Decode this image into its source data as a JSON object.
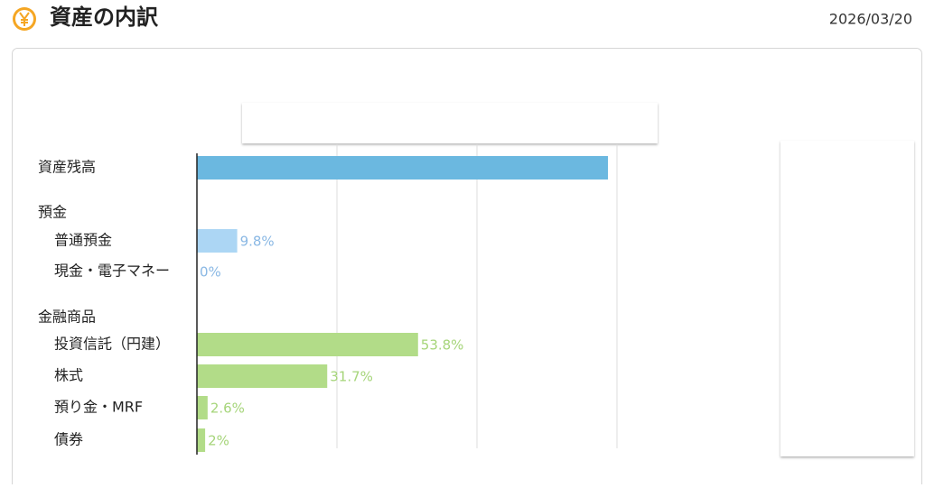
{
  "header": {
    "title": "資産の内訳",
    "date": "2026/03/20"
  },
  "chart_data": {
    "type": "bar",
    "categories": [
      "資産残高",
      "預金",
      "普通預金",
      "現金・電子マネー",
      "金融商品",
      "投資信託（円建）",
      "株式",
      "預り金・MRF",
      "債券"
    ],
    "values": [
      100,
      null,
      9.8,
      0,
      null,
      53.8,
      31.7,
      2.6,
      2
    ],
    "value_labels": [
      null,
      null,
      "9.8%",
      "0%",
      null,
      "53.8%",
      "31.7%",
      "2.6%",
      "2%"
    ],
    "colors": [
      "#6bb8e0",
      null,
      "#acd6f4",
      "#acd6f4",
      null,
      "#b2dc88",
      "#b2dc88",
      "#b2dc88",
      "#b2dc88"
    ],
    "label_colors": [
      null,
      null,
      "#8ab8e4",
      "#8ab8e4",
      null,
      "#a6d57a",
      "#a6d57a",
      "#a6d57a",
      "#a6d57a"
    ],
    "xlim": [
      0,
      100
    ]
  }
}
